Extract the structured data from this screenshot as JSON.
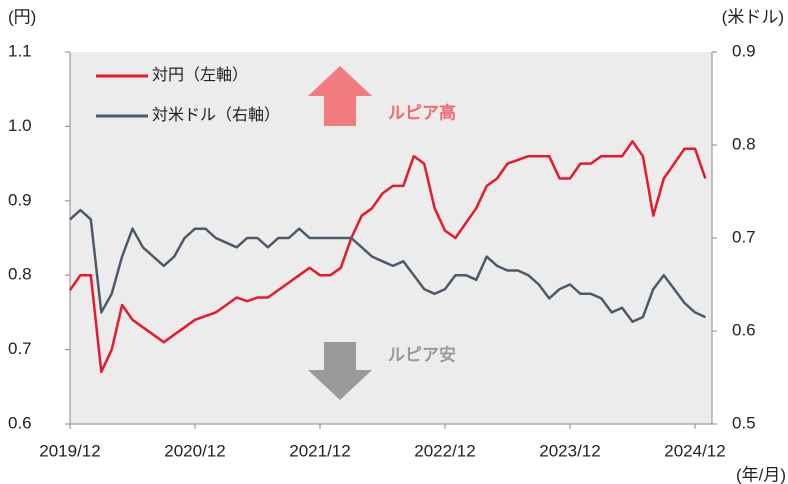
{
  "chart_data": {
    "type": "line",
    "y_label": "(円)",
    "y2_label": "(米ドル)",
    "x_label": "(年/月)",
    "annotations": [
      "ルピア高",
      "ルピア安"
    ],
    "x": [
      "2019/12",
      "2020/01",
      "2020/02",
      "2020/03",
      "2020/04",
      "2020/05",
      "2020/06",
      "2020/07",
      "2020/08",
      "2020/09",
      "2020/10",
      "2020/11",
      "2020/12",
      "2021/01",
      "2021/02",
      "2021/03",
      "2021/04",
      "2021/05",
      "2021/06",
      "2021/07",
      "2021/08",
      "2021/09",
      "2021/10",
      "2021/11",
      "2021/12",
      "2022/01",
      "2022/02",
      "2022/03",
      "2022/04",
      "2022/05",
      "2022/06",
      "2022/07",
      "2022/08",
      "2022/09",
      "2022/10",
      "2022/11",
      "2022/12",
      "2023/01",
      "2023/02",
      "2023/03",
      "2023/04",
      "2023/05",
      "2023/06",
      "2023/07",
      "2023/08",
      "2023/09",
      "2023/10",
      "2023/11",
      "2023/12",
      "2024/01",
      "2024/02",
      "2024/03",
      "2024/04",
      "2024/05",
      "2024/06",
      "2024/07",
      "2024/08",
      "2024/09",
      "2024/10",
      "2024/11",
      "2024/12",
      "2025/01"
    ],
    "xticks": [
      "2019/12",
      "2020/12",
      "2021/12",
      "2022/12",
      "2023/12",
      "2024/12"
    ],
    "series": [
      {
        "name": "対円（左軸）",
        "color": "#e8192c",
        "values": [
          0.78,
          0.8,
          0.8,
          0.67,
          0.7,
          0.76,
          0.74,
          0.73,
          0.72,
          0.71,
          0.72,
          0.73,
          0.74,
          0.745,
          0.75,
          0.76,
          0.77,
          0.765,
          0.77,
          0.77,
          0.78,
          0.79,
          0.8,
          0.81,
          0.8,
          0.8,
          0.81,
          0.85,
          0.88,
          0.89,
          0.91,
          0.92,
          0.92,
          0.96,
          0.95,
          0.89,
          0.86,
          0.85,
          0.87,
          0.89,
          0.92,
          0.93,
          0.95,
          0.955,
          0.96,
          0.96,
          0.96,
          0.93,
          0.93,
          0.95,
          0.95,
          0.96,
          0.96,
          0.96,
          0.98,
          0.96,
          0.88,
          0.93,
          0.95,
          0.97,
          0.97,
          0.93
        ]
      },
      {
        "name": "対米ドル（右軸）",
        "color": "#4d5a6a",
        "axis": "y2",
        "values": [
          0.72,
          0.73,
          0.72,
          0.62,
          0.64,
          0.68,
          0.71,
          0.69,
          0.68,
          0.67,
          0.68,
          0.7,
          0.71,
          0.71,
          0.7,
          0.695,
          0.69,
          0.7,
          0.7,
          0.69,
          0.7,
          0.7,
          0.71,
          0.7,
          0.7,
          0.7,
          0.7,
          0.7,
          0.69,
          0.68,
          0.675,
          0.67,
          0.675,
          0.66,
          0.645,
          0.64,
          0.645,
          0.66,
          0.66,
          0.655,
          0.68,
          0.67,
          0.665,
          0.665,
          0.66,
          0.65,
          0.635,
          0.645,
          0.65,
          0.64,
          0.64,
          0.635,
          0.62,
          0.625,
          0.61,
          0.615,
          0.645,
          0.66,
          0.645,
          0.63,
          0.62,
          0.615
        ]
      }
    ],
    "ylim": [
      0.6,
      1.1
    ],
    "yticks": [
      1.1,
      {
        "value": 1,
        "label": "1.0"
      },
      0.9,
      0.8,
      0.7,
      0.6
    ],
    "y2lim": [
      0.5,
      0.9
    ],
    "y2ticks": [
      0.9,
      0.8,
      0.7,
      0.6,
      0.5
    ]
  }
}
